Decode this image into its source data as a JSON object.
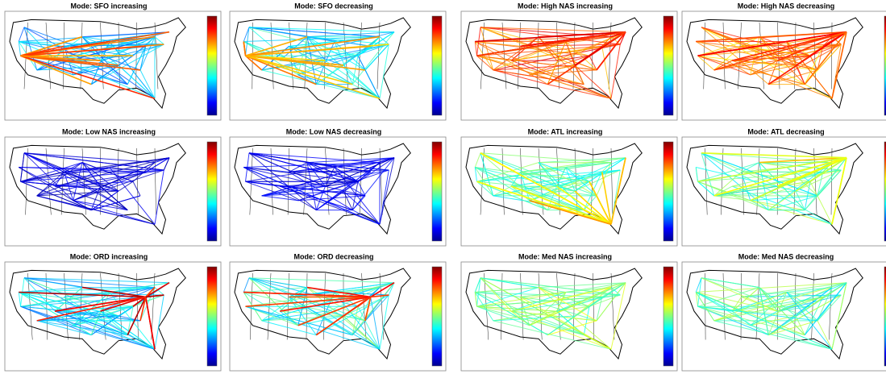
{
  "panels": [
    {
      "title": "Mode: SFO increasing"
    },
    {
      "title": "Mode: SFO decreasing"
    },
    {
      "title": "Mode: High NAS increasing"
    },
    {
      "title": "Mode: High NAS decreasing"
    },
    {
      "title": "Mode: Low NAS increasing"
    },
    {
      "title": "Mode: Low NAS decreasing"
    },
    {
      "title": "Mode: ATL increasing"
    },
    {
      "title": "Mode: ATL decreasing"
    },
    {
      "title": "Mode: ORD increasing"
    },
    {
      "title": "Mode: ORD decreasing"
    },
    {
      "title": "Mode: Med NAS increasing"
    },
    {
      "title": "Mode: Med NAS decreasing"
    }
  ]
}
